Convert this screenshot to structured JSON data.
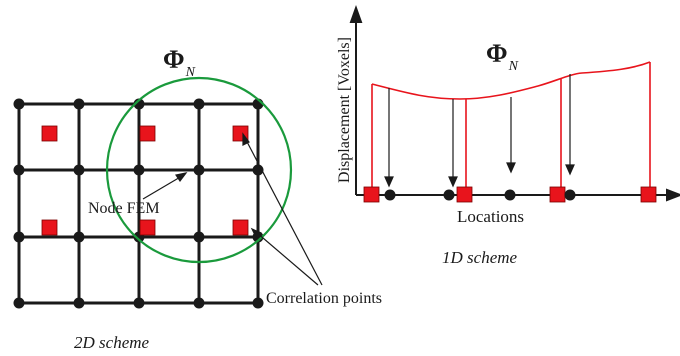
{
  "left_panel": {
    "symbol": "Φ",
    "symbol_subscript": "N",
    "node_label": "Node FEM",
    "correlation_label": "Correlation points",
    "caption": "2D scheme"
  },
  "right_panel": {
    "symbol": "Φ",
    "symbol_subscript": "N",
    "y_axis_label": "Displacement [Voxels]",
    "x_axis_label": "Locations",
    "caption": "1D scheme"
  },
  "colors": {
    "grid": "#1a1a1a",
    "node": "#1a1a1a",
    "correlation_point": "#e8141c",
    "circle": "#1a9a3c",
    "curve": "#e8141c"
  }
}
